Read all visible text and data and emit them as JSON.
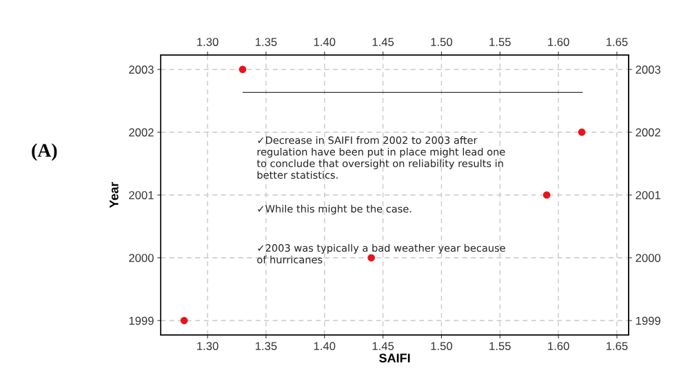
{
  "chart_data": {
    "type": "scatter",
    "xlabel": "SAIFI",
    "ylabel": "Year",
    "x": [
      1.28,
      1.33,
      1.44,
      1.59,
      1.62
    ],
    "series": [
      {
        "color": "#e8141c",
        "values": [
          1999,
          2003,
          2000,
          2001,
          2002
        ]
      }
    ],
    "xlim": [
      1.26,
      1.66
    ],
    "xticks": [
      {
        "value": 1.3,
        "label": "1.30"
      },
      1.35,
      {
        "value": 1.4,
        "label": "1.40"
      },
      1.45,
      {
        "value": 1.5,
        "label": "1.50"
      },
      1.55,
      {
        "value": 1.6,
        "label": "1.60"
      },
      1.65
    ],
    "x2lim": [
      1.26,
      1.66
    ],
    "x2ticks": [
      {
        "value": 1.3,
        "label": "1.30"
      },
      1.35,
      {
        "value": 1.4,
        "label": "1.40"
      },
      1.45,
      {
        "value": 1.5,
        "label": "1.50"
      },
      1.55,
      {
        "value": 1.6,
        "label": "1.60"
      },
      1.65
    ],
    "ylim": [
      1998.77,
      2003.23
    ],
    "yticks": [
      1999,
      2000,
      2001,
      2002,
      2003
    ],
    "y2lim": [
      1998.77,
      2003.23
    ],
    "y2ticks": [
      1999,
      2000,
      2001,
      2002,
      2003
    ],
    "grid": true,
    "marker": "circle",
    "annotations": [
      "(A)",
      "✓Decrease in SAIFI from 2002 to 2003 after\nregulation have been put in place might lead one\nto conclude that oversight on reliability results in\nbetter statistics.",
      "✓While this might be the case.",
      "✓2003 was typically a bad weather year because\nof hurricanes"
    ]
  }
}
